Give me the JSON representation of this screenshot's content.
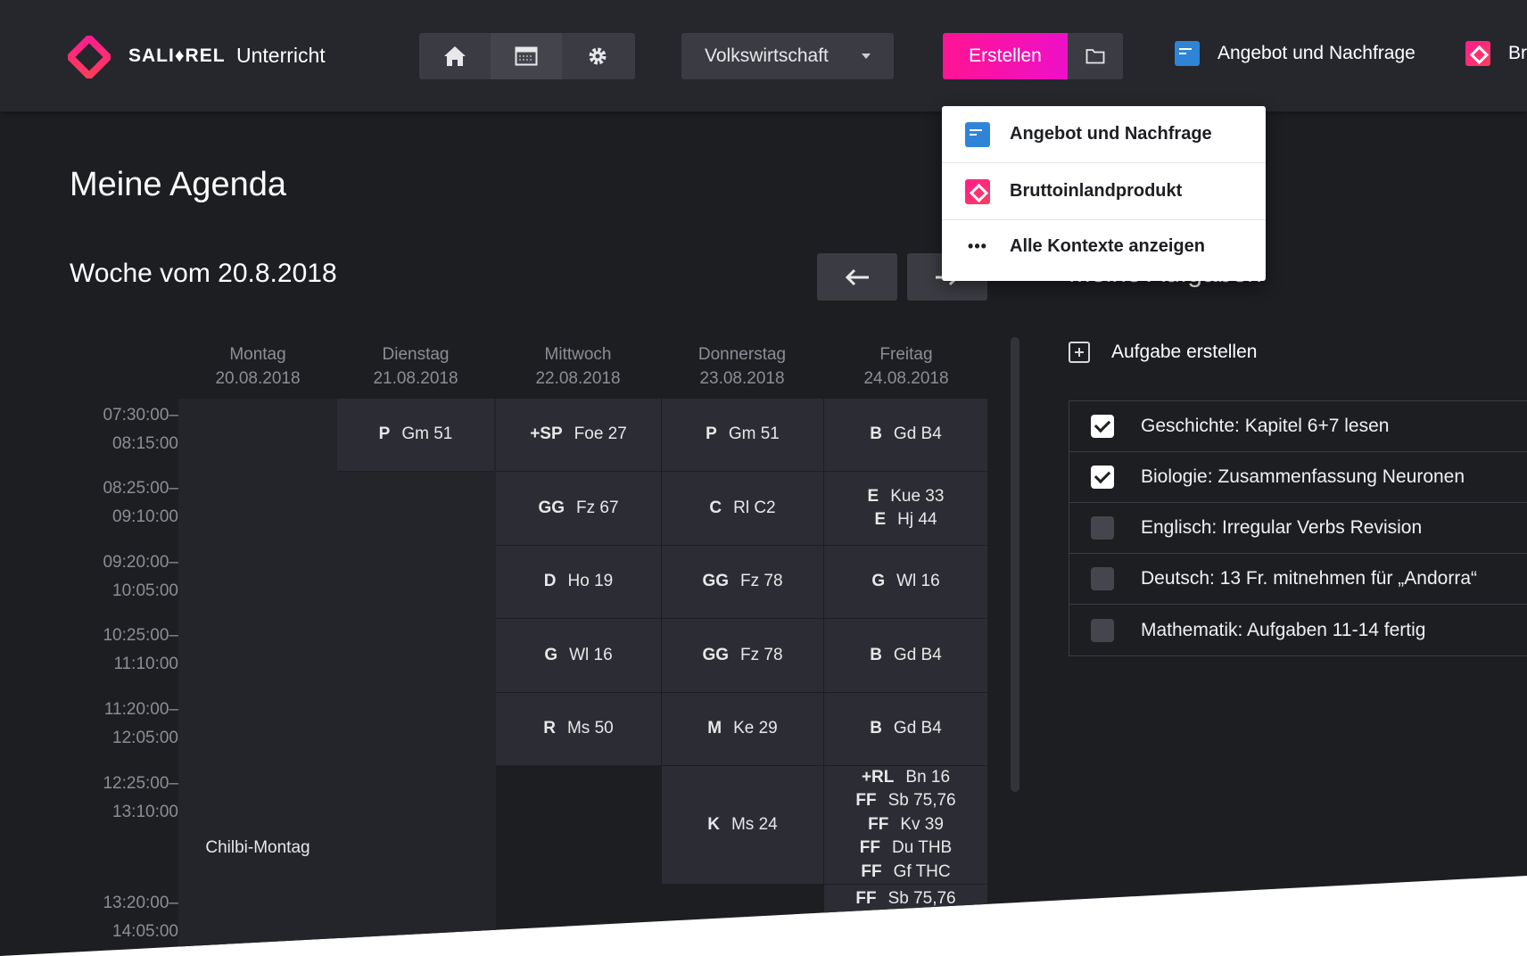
{
  "brand": {
    "name": "SALI♦REL",
    "product": "Unterricht",
    "logo_icon": "diamond-logo-icon"
  },
  "nav": {
    "items": [
      {
        "name": "home",
        "icon": "home-icon"
      },
      {
        "name": "calendar",
        "icon": "calendar-icon",
        "active": true
      },
      {
        "name": "settings",
        "icon": "gear-icon"
      }
    ]
  },
  "context_select": {
    "value": "Volkswirtschaft"
  },
  "create": {
    "label": "Erstellen",
    "folder_icon": "folder-icon"
  },
  "header_contexts": [
    {
      "label": "Angebot und Nachfrage",
      "color": "blue"
    },
    {
      "label": "Br",
      "color": "pink"
    }
  ],
  "dropdown": {
    "items": [
      {
        "label": "Angebot und Nachfrage",
        "icon": "blue"
      },
      {
        "label": "Bruttoinlandprodukt",
        "icon": "pink"
      },
      {
        "label": "Alle Kontexte anzeigen",
        "icon": "dots"
      }
    ]
  },
  "page": {
    "title": "Meine Agenda"
  },
  "week": {
    "title": "Woche vom 20.8.2018"
  },
  "days": [
    {
      "name": "Montag",
      "date": "20.08.2018"
    },
    {
      "name": "Dienstag",
      "date": "21.08.2018"
    },
    {
      "name": "Mittwoch",
      "date": "22.08.2018"
    },
    {
      "name": "Donnerstag",
      "date": "23.08.2018"
    },
    {
      "name": "Freitag",
      "date": "24.08.2018"
    }
  ],
  "times": [
    {
      "start": "07:30:00–",
      "end": "08:15:00"
    },
    {
      "start": "08:25:00–",
      "end": "09:10:00"
    },
    {
      "start": "09:20:00–",
      "end": "10:05:00"
    },
    {
      "start": "10:25:00–",
      "end": "11:10:00"
    },
    {
      "start": "11:20:00–",
      "end": "12:05:00"
    },
    {
      "start": "12:25:00–",
      "end": "13:10:00"
    },
    {
      "start": "13:20:00–",
      "end": "14:05:00"
    }
  ],
  "monday_note": "Chilbi-Montag",
  "schedule": {
    "tue": [
      [
        {
          "code": "P",
          "room": "Gm 51"
        }
      ]
    ],
    "wed": [
      [
        {
          "code": "+SP",
          "room": "Foe 27"
        }
      ],
      [
        {
          "code": "GG",
          "room": "Fz 67"
        }
      ],
      [
        {
          "code": "D",
          "room": "Ho 19"
        }
      ],
      [
        {
          "code": "G",
          "room": "Wl 16"
        }
      ],
      [
        {
          "code": "R",
          "room": "Ms 50"
        }
      ]
    ],
    "thu": [
      [
        {
          "code": "P",
          "room": "Gm 51"
        }
      ],
      [
        {
          "code": "C",
          "room": "Rl C2"
        }
      ],
      [
        {
          "code": "GG",
          "room": "Fz 78"
        }
      ],
      [
        {
          "code": "GG",
          "room": "Fz 78"
        }
      ],
      [
        {
          "code": "M",
          "room": "Ke 29"
        }
      ],
      [
        {
          "code": "K",
          "room": "Ms 24"
        }
      ]
    ],
    "fri": [
      [
        {
          "code": "B",
          "room": "Gd B4"
        }
      ],
      [
        {
          "code": "E",
          "room": "Kue 33"
        },
        {
          "code": "E",
          "room": "Hj 44"
        }
      ],
      [
        {
          "code": "G",
          "room": "Wl 16"
        }
      ],
      [
        {
          "code": "B",
          "room": "Gd B4"
        }
      ],
      [
        {
          "code": "B",
          "room": "Gd B4"
        }
      ],
      [
        {
          "code": "+RL",
          "room": "Bn 16"
        },
        {
          "code": "FF",
          "room": "Sb 75,76"
        },
        {
          "code": "FF",
          "room": "Kv 39"
        },
        {
          "code": "FF",
          "room": "Du THB"
        },
        {
          "code": "FF",
          "room": "Gf THC"
        }
      ],
      [
        {
          "code": "FF",
          "room": "Sb 75,76"
        }
      ]
    ]
  },
  "tasks": {
    "title": "Meine Aufgaben",
    "add_label": "Aufgabe erstellen",
    "items": [
      {
        "label": "Geschichte: Kapitel 6+7 lesen",
        "done": true
      },
      {
        "label": "Biologie: Zusammenfassung Neuronen",
        "done": true
      },
      {
        "label": "Englisch: Irregular Verbs Revision",
        "done": false
      },
      {
        "label": "Deutsch: 13 Fr. mitnehmen für „Andorra“",
        "done": false
      },
      {
        "label": "Mathematik: Aufgaben 11-14 fertig",
        "done": false
      }
    ]
  },
  "colors": {
    "background": "#1d1e22",
    "header": "#26272d",
    "accent": "#ff1493",
    "context_blue": "#2f84d8"
  }
}
